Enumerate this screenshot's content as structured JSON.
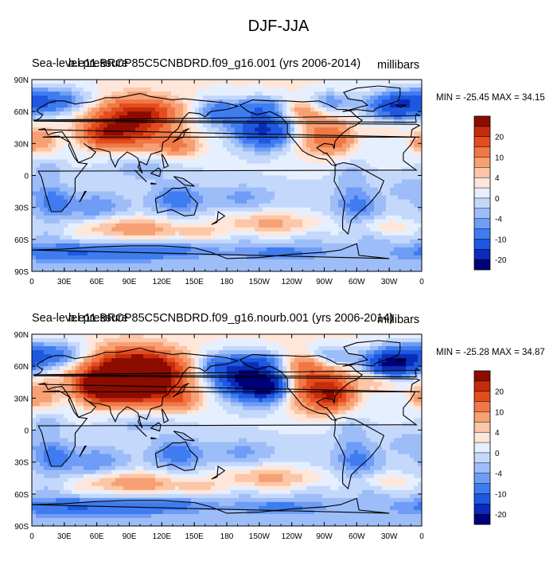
{
  "title": "DJF-JJA",
  "colors": {
    "levels": [
      "#00007a",
      "#0a2db8",
      "#1f58e0",
      "#3f7cf0",
      "#6e9cf6",
      "#9dbdf8",
      "#c4d8fb",
      "#e6efff",
      "#ffe6d8",
      "#fcc6a8",
      "#f7a074",
      "#f07846",
      "#e44c1e",
      "#c42c0c",
      "#8c0c00"
    ],
    "coast": "#000000"
  },
  "chart_data": [
    {
      "type": "heatmap",
      "title_left": "Sea-level pressure",
      "title_left_overlap": "b.e11.BRCP85C5CNBDRD.f09_g16.001 (yrs 2006-2014)",
      "title_right": "millibars",
      "min_max": "MIN = -25.45 MAX =  34.15",
      "variant": 0,
      "colorbar_labels": [
        "20",
        "10",
        "4",
        "0",
        "-4",
        "-10",
        "-20"
      ],
      "x_ticks": [
        "0",
        "30E",
        "60E",
        "90E",
        "120E",
        "150E",
        "180",
        "150W",
        "120W",
        "90W",
        "60W",
        "30W",
        "0"
      ],
      "y_ticks": [
        "90N",
        "60N",
        "30N",
        "0",
        "30S",
        "60S",
        "90S"
      ]
    },
    {
      "type": "heatmap",
      "title_left": "Sea-level pressure",
      "title_left_overlap": "b.e11.BRCP85C5CNBDRD.f09_g16.nourb.001 (yrs 2006-2014)",
      "title_right": "millibars",
      "min_max": "MIN = -25.28 MAX =  34.87",
      "variant": 1,
      "colorbar_labels": [
        "20",
        "10",
        "4",
        "0",
        "-4",
        "-10",
        "-20"
      ],
      "x_ticks": [
        "0",
        "30E",
        "60E",
        "90E",
        "120E",
        "150E",
        "180",
        "150W",
        "120W",
        "90W",
        "60W",
        "30W",
        "0"
      ],
      "y_ticks": [
        "90N",
        "60N",
        "30N",
        "0",
        "30S",
        "60S",
        "90S"
      ]
    }
  ]
}
